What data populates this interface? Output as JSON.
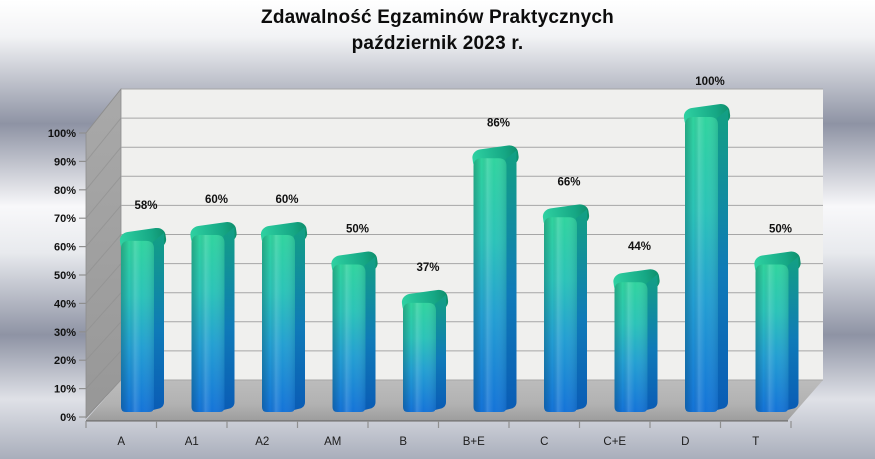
{
  "title": "Zdawalność Egzaminów Praktycznych",
  "subtitle": "październik 2023 r.",
  "chart_data": {
    "type": "bar",
    "title": "Zdawalność Egzaminów Praktycznych",
    "subtitle": "październik 2023 r.",
    "categories": [
      "A",
      "A1",
      "A2",
      "AM",
      "B",
      "B+E",
      "C",
      "C+E",
      "D",
      "T"
    ],
    "values": [
      58,
      60,
      60,
      50,
      37,
      86,
      66,
      44,
      100,
      50
    ],
    "value_labels": [
      "58%",
      "60%",
      "60%",
      "50%",
      "37%",
      "86%",
      "66%",
      "44%",
      "100%",
      "50%"
    ],
    "yticks": [
      "0%",
      "10%",
      "20%",
      "30%",
      "40%",
      "50%",
      "60%",
      "70%",
      "80%",
      "90%",
      "100%"
    ],
    "ylim": [
      0,
      100
    ],
    "xlabel": "",
    "ylabel": "",
    "grid": true,
    "legend": false,
    "style_3d": true,
    "colors": {
      "bar_front": [
        "#30d49e",
        "#2bc3b8",
        "#239fd2",
        "#1473d8"
      ],
      "bar_side": [
        "#13a083",
        "#0f7ab8",
        "#0a5cb5"
      ],
      "bar_cap": [
        "#2fd2a2",
        "#16a885",
        "#0f8f6d"
      ],
      "back_wall": "#f0f0ee",
      "side_wall": "#9e9e9e",
      "floor": "#b3b3b3",
      "gridline": "#a6a6a6",
      "text": "#111111"
    }
  }
}
